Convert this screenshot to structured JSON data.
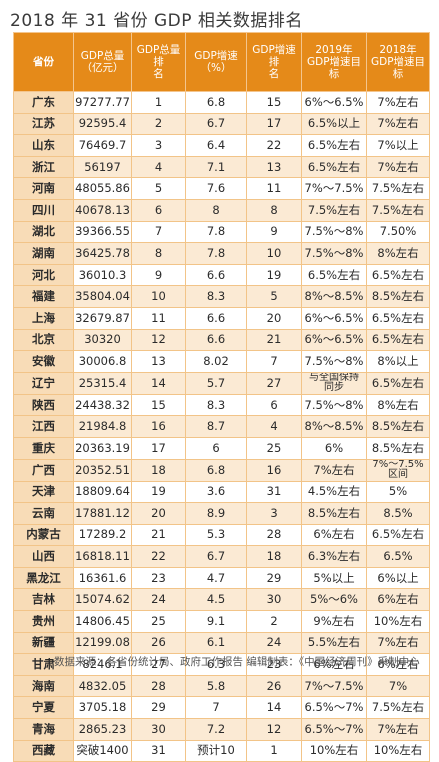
{
  "title": "2018 年 31 省份 GDP 相关数据排名",
  "headers": [
    "省份",
    "GDP总量\n（亿元）",
    "GDP总量排\n名",
    "GDP增速\n（%）",
    "GDP增速排\n名",
    "2019年\nGDP增速目\n标",
    "2018年\nGDP增速目\n标"
  ],
  "rows": [
    [
      "广东",
      "97277.77",
      "1",
      "6.8",
      "15",
      "6%～6.5%",
      "7%左右"
    ],
    [
      "江苏",
      "92595.4",
      "2",
      "6.7",
      "17",
      "6.5%以上",
      "7%左右"
    ],
    [
      "山东",
      "76469.7",
      "3",
      "6.4",
      "22",
      "6.5%左右",
      "7%以上"
    ],
    [
      "浙江",
      "56197",
      "4",
      "7.1",
      "13",
      "6.5%左右",
      "7%左右"
    ],
    [
      "河南",
      "48055.86",
      "5",
      "7.6",
      "11",
      "7%～7.5%",
      "7.5%左右"
    ],
    [
      "四川",
      "40678.13",
      "6",
      "8",
      "8",
      "7.5%左右",
      "7.5%左右"
    ],
    [
      "湖北",
      "39366.55",
      "7",
      "7.8",
      "9",
      "7.5%～8%",
      "7.50%"
    ],
    [
      "湖南",
      "36425.78",
      "8",
      "7.8",
      "10",
      "7.5%～8%",
      "8%左右"
    ],
    [
      "河北",
      "36010.3",
      "9",
      "6.6",
      "19",
      "6.5%左右",
      "6.5%左右"
    ],
    [
      "福建",
      "35804.04",
      "10",
      "8.3",
      "5",
      "8%～8.5%",
      "8.5%左右"
    ],
    [
      "上海",
      "32679.87",
      "11",
      "6.6",
      "20",
      "6%～6.5%",
      "6.5%左右"
    ],
    [
      "北京",
      "30320",
      "12",
      "6.6",
      "21",
      "6%～6.5%",
      "6.5%左右"
    ],
    [
      "安徽",
      "30006.8",
      "13",
      "8.02",
      "7",
      "7.5%～8%",
      "8%以上"
    ],
    [
      "辽宁",
      "25315.4",
      "14",
      "5.7",
      "27",
      "与全国保持\n同步",
      "6.5%左右"
    ],
    [
      "陕西",
      "24438.32",
      "15",
      "8.3",
      "6",
      "7.5%～8%",
      "8%左右"
    ],
    [
      "江西",
      "21984.8",
      "16",
      "8.7",
      "4",
      "8%～8.5%",
      "8.5%左右"
    ],
    [
      "重庆",
      "20363.19",
      "17",
      "6",
      "25",
      "6%",
      "8.5%左右"
    ],
    [
      "广西",
      "20352.51",
      "18",
      "6.8",
      "16",
      "7%左右",
      "7%～7.5%\n区间"
    ],
    [
      "天津",
      "18809.64",
      "19",
      "3.6",
      "31",
      "4.5%左右",
      "5%"
    ],
    [
      "云南",
      "17881.12",
      "20",
      "8.9",
      "3",
      "8.5%左右",
      "8.5%"
    ],
    [
      "内蒙古",
      "17289.2",
      "21",
      "5.3",
      "28",
      "6%左右",
      "6.5%左右"
    ],
    [
      "山西",
      "16818.11",
      "22",
      "6.7",
      "18",
      "6.3%左右",
      "6.5%"
    ],
    [
      "黑龙江",
      "16361.6",
      "23",
      "4.7",
      "29",
      "5%以上",
      "6%以上"
    ],
    [
      "吉林",
      "15074.62",
      "24",
      "4.5",
      "30",
      "5%～6%",
      "6%左右"
    ],
    [
      "贵州",
      "14806.45",
      "25",
      "9.1",
      "2",
      "9%左右",
      "10%左右"
    ],
    [
      "新疆",
      "12199.08",
      "26",
      "6.1",
      "24",
      "5.5%左右",
      "7%左右"
    ],
    [
      "甘肃",
      "8246.1",
      "27",
      "6.3",
      "23",
      "6%左右",
      "6%左右"
    ],
    [
      "海南",
      "4832.05",
      "28",
      "5.8",
      "26",
      "7%～7.5%",
      "7%"
    ],
    [
      "宁夏",
      "3705.18",
      "29",
      "7",
      "14",
      "6.5%～7%",
      "7.5%左右"
    ],
    [
      "青海",
      "2865.23",
      "30",
      "7.2",
      "12",
      "6.5%～7%",
      "7%左右"
    ],
    [
      "西藏",
      "突破1400",
      "31",
      "预计10",
      "1",
      "10%左右",
      "10%左右"
    ]
  ],
  "footer": "数据来源：各省份统计局、政府工作报告   编辑制表：《中国经济周刊》采制中心"
}
